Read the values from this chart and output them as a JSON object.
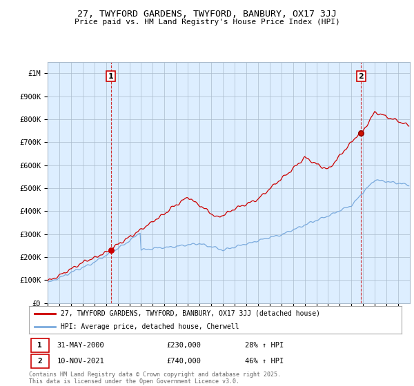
{
  "title": "27, TWYFORD GARDENS, TWYFORD, BANBURY, OX17 3JJ",
  "subtitle": "Price paid vs. HM Land Registry's House Price Index (HPI)",
  "ylim": [
    0,
    1050000
  ],
  "yticks": [
    0,
    100000,
    200000,
    300000,
    400000,
    500000,
    600000,
    700000,
    800000,
    900000,
    1000000
  ],
  "ytick_labels": [
    "£0",
    "£100K",
    "£200K",
    "£300K",
    "£400K",
    "£500K",
    "£600K",
    "£700K",
    "£800K",
    "£900K",
    "£1M"
  ],
  "sale1_year": 2000.417,
  "sale1_price": 230000,
  "sale2_year": 2021.833,
  "sale2_price": 740000,
  "legend_line1": "27, TWYFORD GARDENS, TWYFORD, BANBURY, OX17 3JJ (detached house)",
  "legend_line2": "HPI: Average price, detached house, Cherwell",
  "footnote": "Contains HM Land Registry data © Crown copyright and database right 2025.\nThis data is licensed under the Open Government Licence v3.0.",
  "line_color_red": "#cc0000",
  "line_color_blue": "#7aaadd",
  "chart_bg": "#ddeeff",
  "bg_color": "#ffffff",
  "grid_color": "#aabbcc",
  "start_year": 1995,
  "end_year": 2025,
  "table_date1": "31-MAY-2000",
  "table_price1": "£230,000",
  "table_pct1": "28% ↑ HPI",
  "table_date2": "10-NOV-2021",
  "table_price2": "£740,000",
  "table_pct2": "46% ↑ HPI"
}
